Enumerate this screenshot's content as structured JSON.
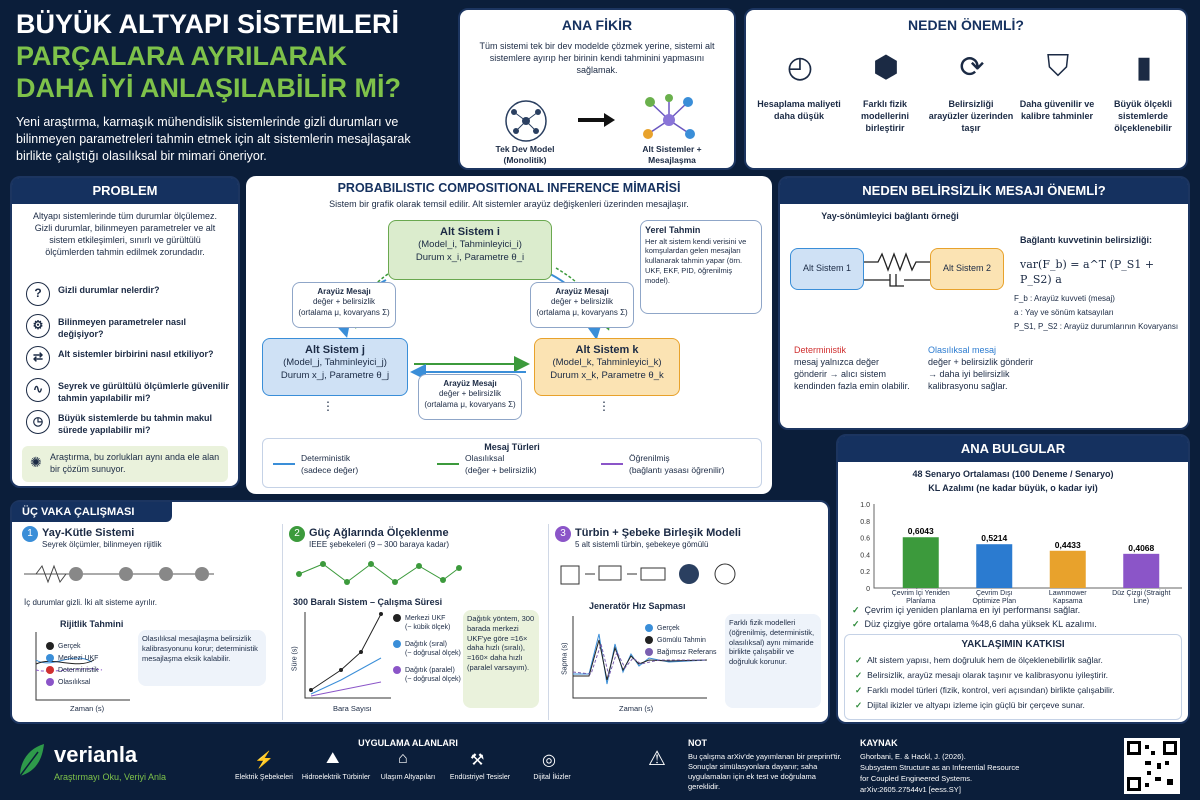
{
  "title": {
    "line1": "BÜYÜK ALTYAPI SİSTEMLERİ",
    "line2": "PARÇALARA AYRILARAK",
    "line3": "DAHA İYİ ANLAŞILABİLİR Mİ?",
    "desc": "Yeni araştırma, karmaşık mühendislik sistemlerinde gizli durumları ve bilinmeyen parametreleri tahmin etmek için alt sistemlerin mesajlaşarak birlikte çalıştığı olasılıksal bir mimari öneriyor."
  },
  "ana_fikir": {
    "title": "ANA FİKİR",
    "text": "Tüm sistemi tek bir dev modelde çözmek yerine, sistemi alt sistemlere ayırıp her birinin kendi tahminini yapmasını sağlamak.",
    "left": "Tek Dev Model (Monolitik)",
    "right": "Alt Sistemler + Mesajlaşma"
  },
  "neden": {
    "title": "NEDEN ÖNEMLİ?",
    "items": [
      {
        "icon": "gauge-icon",
        "label": "Hesaplama maliyeti daha düşük"
      },
      {
        "icon": "cubes-icon",
        "label": "Farklı fizik modellerini birleştirir"
      },
      {
        "icon": "sync-icon",
        "label": "Belirsizliği arayüzler üzerinden taşır"
      },
      {
        "icon": "shield-icon",
        "label": "Daha güvenilir ve kalibre tahminler"
      },
      {
        "icon": "bars-icon",
        "label": "Büyük ölçekli sistemlerde ölçeklenebilir"
      }
    ]
  },
  "problem": {
    "title": "PROBLEM",
    "text": "Altyapı sistemlerinde tüm durumlar ölçülemez. Gizli durumlar, bilinmeyen parametreler ve alt sistem etkileşimleri, sınırlı ve gürültülü ölçümlerden tahmin edilmek zorundadır.",
    "items": [
      "Gizli durumlar nelerdir?",
      "Bilinmeyen parametreler nasıl değişiyor?",
      "Alt sistemler birbirini nasıl etkiliyor?",
      "Seyrek ve gürültülü ölçümlerle güvenilir tahmin yapılabilir mi?",
      "Büyük sistemlerde bu tahmin makul sürede yapılabilir mi?"
    ],
    "note": "Araştırma, bu zorlukları aynı anda ele alan bir çözüm sunuyor."
  },
  "mimari": {
    "title": "PROBABILISTIC COMPOSITIONAL INFERENCE MİMARİSİ",
    "sub": "Sistem bir grafik olarak temsil edilir. Alt sistemler arayüz değişkenleri üzerinden mesajlaşır.",
    "i": {
      "name": "Alt Sistem i",
      "l2": "(Model_i, Tahminleyici_i)",
      "l3": "Durum x_i, Parametre θ_i"
    },
    "j": {
      "name": "Alt Sistem j",
      "l2": "(Model_j, Tahminleyici_j)",
      "l3": "Durum x_j, Parametre θ_j"
    },
    "k": {
      "name": "Alt Sistem k",
      "l2": "(Model_k, Tahminleyici_k)",
      "l3": "Durum x_k, Parametre θ_k"
    },
    "msg": {
      "t": "Arayüz Mesajı",
      "a": "değer + belirsizlik",
      "b": "(ortalama μ, kovaryans Σ)"
    },
    "yerel": {
      "t": "Yerel Tahmin",
      "d": "Her alt sistem kendi verisini ve komşulardan gelen mesajları kullanarak tahmin yapar (örn. UKF, EKF, PID, öğrenilmiş model)."
    },
    "types_title": "Mesaj Türleri",
    "types": [
      {
        "a": "Deterministik",
        "b": "(sadece değer)"
      },
      {
        "a": "Olasılıksal",
        "b": "(değer + belirsizlik)"
      },
      {
        "a": "Öğrenilmiş",
        "b": "(bağlantı yasası öğrenilir)"
      }
    ]
  },
  "belirsizlik": {
    "title": "NEDEN BELİRSİZLİK MESAJI ÖNEMLİ?",
    "sub": "Yay-sönümleyici bağlantı örneği",
    "s1": "Alt Sistem 1",
    "s2": "Alt Sistem 2",
    "formula_t": "Bağlantı kuvvetinin belirsizliği:",
    "formula": "var(F_b) = a^T (P_S1 + P_S2) a",
    "defs": [
      "F_b : Arayüz kuvveti (mesaj)",
      "a : Yay ve sönüm katsayıları",
      "P_S1, P_S2 : Arayüz durumlarının Kovaryansı"
    ],
    "det_h": "Deterministik",
    "det_t": "mesaj yalnızca değer gönderir → alıcı sistem kendinden fazla emin olabilir.",
    "ola_h": "Olasılıksal mesaj",
    "ola_t": "değer + belirsizlik gönderir → daha iyi belirsizlik kalibrasyonu sağlar."
  },
  "bulgular": {
    "title": "ANA BULGULAR",
    "ct": "48 Senaryo Ortalaması (100 Deneme / Senaryo)",
    "cs": "KL Azalımı (ne kadar büyük, o kadar iyi)",
    "checks": [
      "Çevrim içi yeniden planlama en iyi performansı sağlar.",
      "Düz çizgiye göre ortalama %48,6 daha yüksek KL azalımı."
    ]
  },
  "chart_data": [
    {
      "type": "bar",
      "title": "48 Senaryo Ortalaması (100 Deneme / Senaryo)",
      "ylabel": "KL Azalımı (ne kadar büyük, o kadar iyi)",
      "ylim": [
        0,
        1.0
      ],
      "yticks": [
        "0",
        "0.2",
        "0.4",
        "0.6",
        "0.8",
        "1.0"
      ],
      "categories": [
        "Çevrim İçi Yeniden Planlama",
        "Çevrim Dışı Optimize Plan",
        "Lawnmower Kapsama",
        "Düz Çizgi (Straight Line)"
      ],
      "values": [
        0.6043,
        0.5214,
        0.4433,
        0.4068
      ],
      "labels": [
        "0,6043",
        "0,5214",
        "0,4433",
        "0,4068"
      ],
      "colors": [
        "#3c9a3c",
        "#2b7bd0",
        "#e8a22c",
        "#8b55c8"
      ]
    }
  ],
  "katki": {
    "title": "YAKLAŞIMIN KATKISI",
    "items": [
      "Alt sistem yapısı, hem doğruluk hem de ölçeklenebilirlik sağlar.",
      "Belirsizlik, arayüz mesajı olarak taşınır ve kalibrasyonu iyileştirir.",
      "Farklı model türleri (fizik, kontrol, veri açısından) birlikte çalışabilir.",
      "Dijital ikizler ve altyapı izleme için güçlü bir çerçeve sunar."
    ]
  },
  "vaka": {
    "title": "ÜÇ VAKA ÇALIŞMASI",
    "c1": {
      "n": "1",
      "t": "Yay-Kütle Sistemi",
      "s": "Seyrek ölçümler, bilinmeyen rijitlik",
      "note": "İç durumlar gizli. İki alt sisteme ayrılır.",
      "plot": "Rijitlik Tahmini",
      "leg": [
        "Gerçek",
        "Merkezi UKF",
        "Deterministik",
        "Olasılıksal"
      ],
      "x": "Zaman (s)",
      "desc": "Olasılıksal mesajlaşma belirsizlik kalibrasyonunu korur; deterministik mesajlaşma eksik kalabilir."
    },
    "c2": {
      "n": "2",
      "t": "Güç Ağlarında Ölçeklenme",
      "s": "IEEE şebekeleri (9 – 300 baraya kadar)",
      "plot": "300 Baralı Sistem – Çalışma Süresi",
      "leg": [
        "Merkezi UKF",
        "(~ kübik ölçek)",
        "Dağıtık (sıral)",
        "(~ doğrusal ölçek)",
        "Dağıtık (paralel)",
        "(~ doğrusal ölçek)"
      ],
      "x": "Bara Sayısı",
      "y": "Süre (s)",
      "desc": "Dağıtık yöntem, 300 barada merkezi UKF'ye göre ≈16× daha hızlı (sıralı), ≈160× daha hızlı (paralel varsayım)."
    },
    "c3": {
      "n": "3",
      "t": "Türbin + Şebeke Birleşik Modeli",
      "s": "5 alt sistemli türbin, şebekeye gömülü",
      "plot": "Jeneratör Hız Sapması",
      "leg": [
        "Gerçek",
        "Gömülü Tahmin",
        "Bağımsız Referans"
      ],
      "x": "Zaman (s)",
      "y": "Sapma (s)",
      "desc": "Farklı fizik modelleri (öğrenilmiş, deterministik, olasılıksal) aynı mimaride birlikte çalışabilir ve doğruluk korunur."
    }
  },
  "footer": {
    "brand": "verianla",
    "slogan": "Araştırmayı Oku, Veriyi Anla",
    "apps_title": "UYGULAMA ALANLARI",
    "apps": [
      "Elektrik Şebekeleri",
      "Hidroelektrik Türbinler",
      "Ulaşım Altyapıları",
      "Endüstriyel Tesisler",
      "Dijital İkizler"
    ],
    "not_t": "NOT",
    "not": "Bu çalışma arXiv'de yayımlanan bir preprint'tir. Sonuçlar simülasyonlara dayanır; saha uygulamaları için ek test ve doğrulama gereklidir.",
    "kaynak_t": "KAYNAK",
    "kaynak": [
      "Ghorbani, E. & Hackl, J. (2026).",
      "Subsystem Structure as an Inferential Resource",
      "for Coupled Engineered Systems.",
      "arXiv:2605.27544v1 [eess.SY]"
    ]
  }
}
